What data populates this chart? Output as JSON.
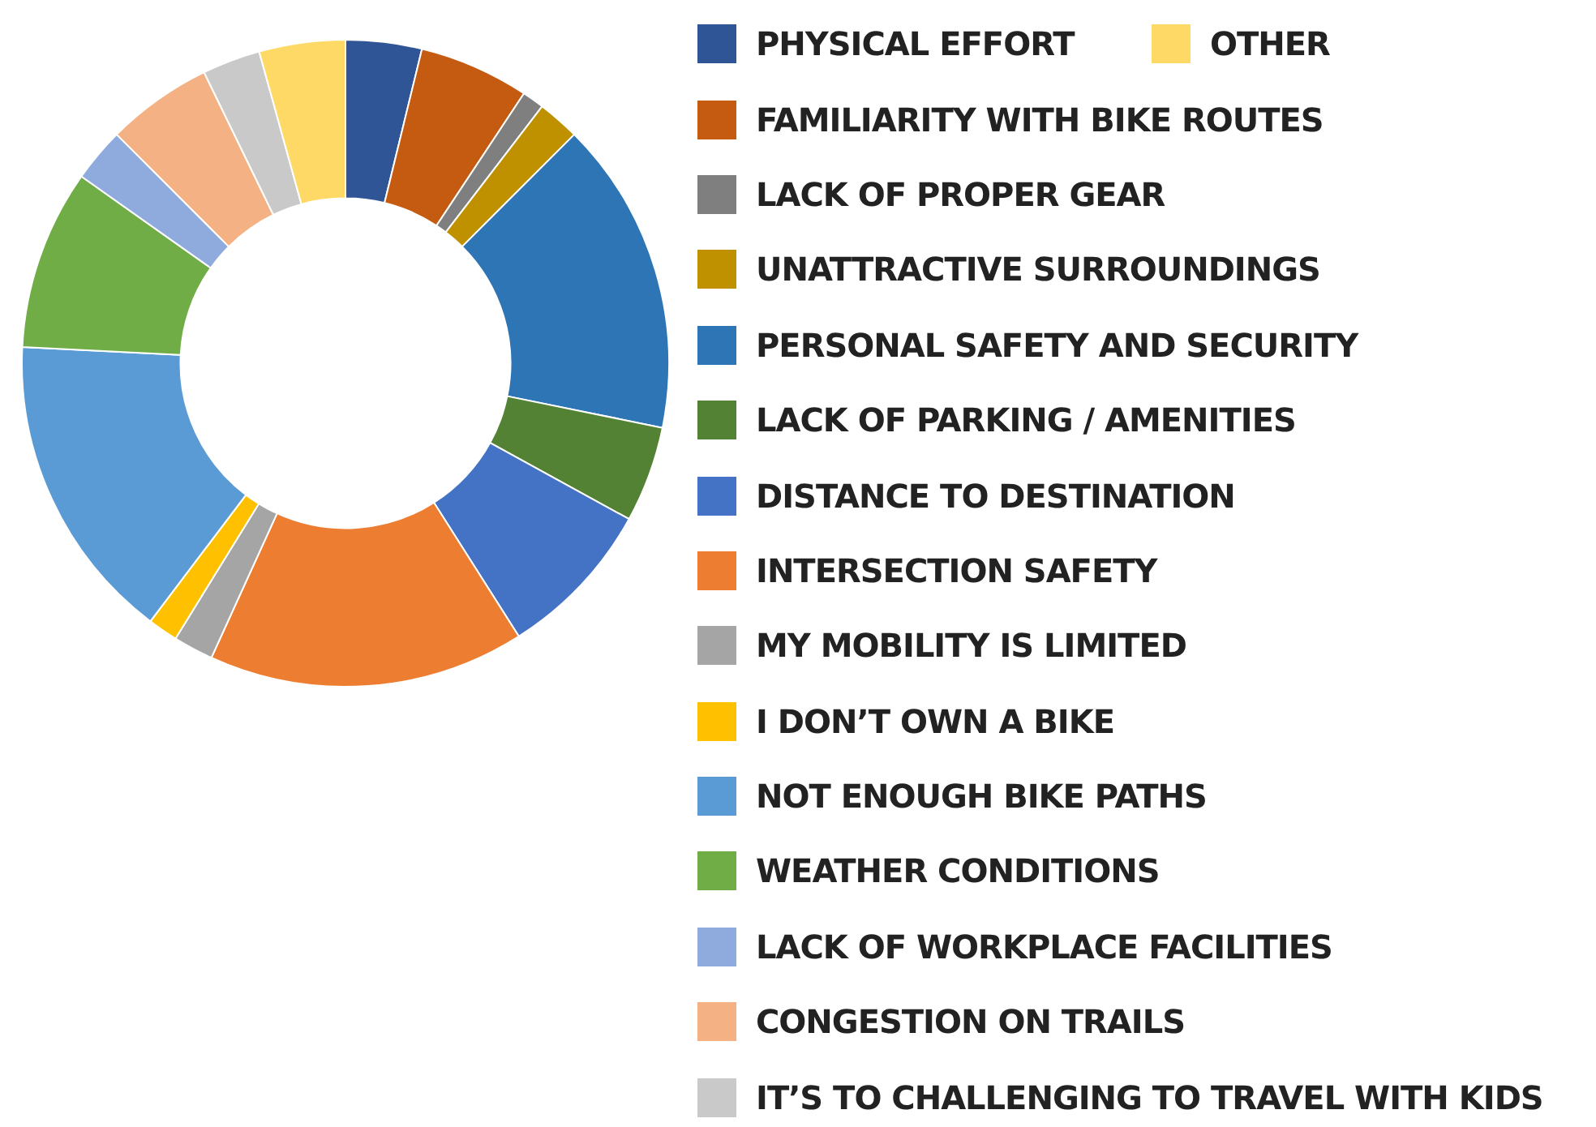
{
  "chart_data": {
    "type": "donut",
    "categories": [
      "PHYSICAL EFFORT",
      "FAMILIARITY WITH BIKE ROUTES",
      "LACK OF PROPER GEAR",
      "UNATTRACTIVE SURROUNDINGS",
      "PERSONAL SAFETY AND SECURITY",
      "LACK OF PARKING / AMENITIES",
      "DISTANCE TO DESTINATION",
      "INTERSECTION SAFETY",
      "MY MOBILITY IS LIMITED",
      "I DON’T OWN A BIKE",
      "NOT ENOUGH BIKE PATHS",
      "WEATHER CONDITIONS",
      "LACK OF WORKPLACE FACILITIES",
      "CONGESTION ON TRAILS",
      "IT’S TO CHALLENGING TO TRAVEL WITH KIDS",
      "OTHER"
    ],
    "values": [
      3.8,
      5.5,
      1.1,
      2.1,
      15.7,
      4.8,
      8.0,
      15.8,
      2.0,
      1.5,
      15.5,
      9.0,
      2.7,
      5.3,
      2.9,
      4.3
    ],
    "colors": [
      "#2f5597",
      "#c55a11",
      "#7f7f7f",
      "#bf9000",
      "#2e75b6",
      "#548235",
      "#4472c4",
      "#ed7d31",
      "#a5a5a5",
      "#ffc000",
      "#5b9bd5",
      "#70ad47",
      "#8faadc",
      "#f4b183",
      "#c9c9c9",
      "#ffd966"
    ],
    "legend": "right"
  }
}
